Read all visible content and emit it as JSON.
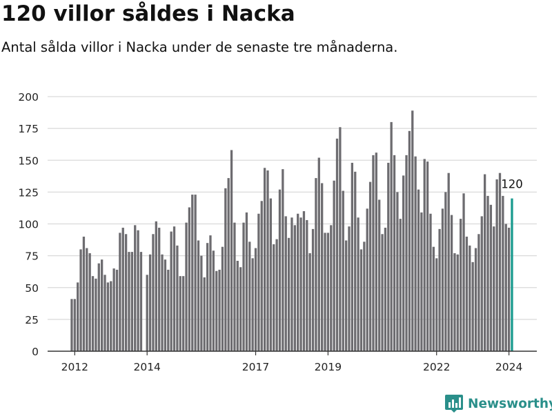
{
  "header": {
    "title": "120 villor såldes i Nacka",
    "subtitle": "Antal sålda villor i Nacka under de senaste tre månaderna."
  },
  "brand": {
    "name": "Newsworthy",
    "color": "#2a8f8a"
  },
  "colors": {
    "bar": "#6d6c70",
    "highlight": "#1a9b8f",
    "grid": "#d9d9d9",
    "axis": "#333333"
  },
  "chart_data": {
    "type": "bar",
    "ylim": [
      0,
      200
    ],
    "yticks": [
      0,
      25,
      50,
      75,
      100,
      125,
      150,
      175,
      200
    ],
    "xticks": [
      {
        "label": "2012",
        "index": 1
      },
      {
        "label": "2014",
        "index": 25
      },
      {
        "label": "2017",
        "index": 61
      },
      {
        "label": "2019",
        "index": 85
      },
      {
        "label": "2022",
        "index": 121
      },
      {
        "label": "2024",
        "index": 145
      }
    ],
    "values": [
      41,
      41,
      54,
      80,
      90,
      81,
      77,
      59,
      57,
      69,
      72,
      60,
      54,
      55,
      65,
      64,
      93,
      97,
      92,
      78,
      78,
      99,
      95,
      78,
      0,
      60,
      76,
      92,
      102,
      97,
      76,
      72,
      64,
      94,
      98,
      83,
      59,
      59,
      101,
      113,
      123,
      123,
      87,
      75,
      58,
      85,
      91,
      79,
      63,
      64,
      82,
      128,
      136,
      158,
      101,
      71,
      66,
      101,
      109,
      86,
      73,
      81,
      108,
      118,
      144,
      142,
      120,
      84,
      88,
      127,
      143,
      106,
      89,
      105,
      99,
      108,
      105,
      110,
      103,
      77,
      96,
      136,
      152,
      132,
      93,
      93,
      99,
      134,
      167,
      176,
      126,
      87,
      98,
      148,
      141,
      105,
      80,
      86,
      112,
      133,
      154,
      156,
      119,
      92,
      97,
      148,
      180,
      154,
      125,
      104,
      138,
      154,
      173,
      189,
      153,
      127,
      109,
      151,
      149,
      108,
      82,
      73,
      96,
      112,
      125,
      140,
      107,
      77,
      76,
      104,
      124,
      90,
      83,
      70,
      81,
      92,
      106,
      139,
      122,
      115,
      98,
      135,
      140,
      122,
      100,
      97,
      120
    ],
    "highlight_label": "120"
  }
}
